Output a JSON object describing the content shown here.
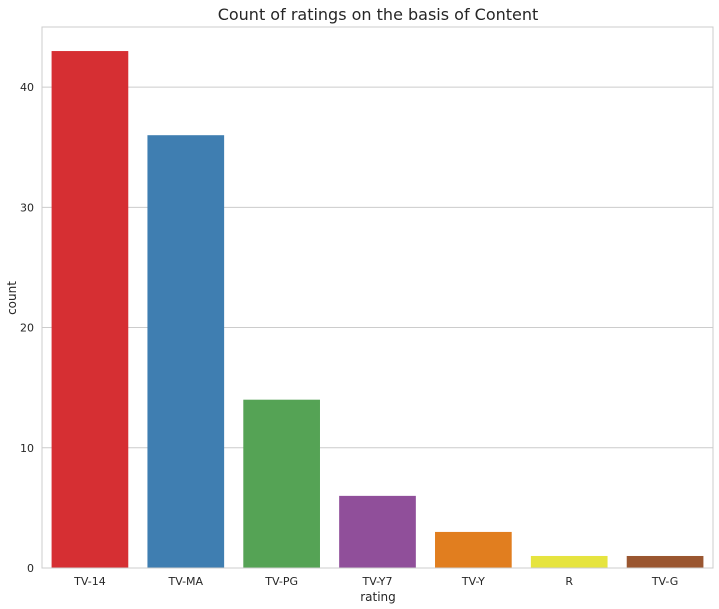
{
  "chart_data": {
    "type": "bar",
    "title": "Count of ratings on the basis of Content",
    "xlabel": "rating",
    "ylabel": "count",
    "categories": [
      "TV-14",
      "TV-MA",
      "TV-PG",
      "TV-Y7",
      "TV-Y",
      "R",
      "TV-G"
    ],
    "values": [
      43,
      36,
      14,
      6,
      3,
      1,
      1
    ],
    "colors": [
      "#d62f33",
      "#3f7eb1",
      "#55a355",
      "#904f9a",
      "#e17e1f",
      "#e6e43f",
      "#9a5630"
    ],
    "ylim": [
      0,
      45
    ],
    "yticks": [
      0,
      10,
      20,
      30,
      40
    ],
    "grid": "horizontal",
    "legend": "none"
  }
}
